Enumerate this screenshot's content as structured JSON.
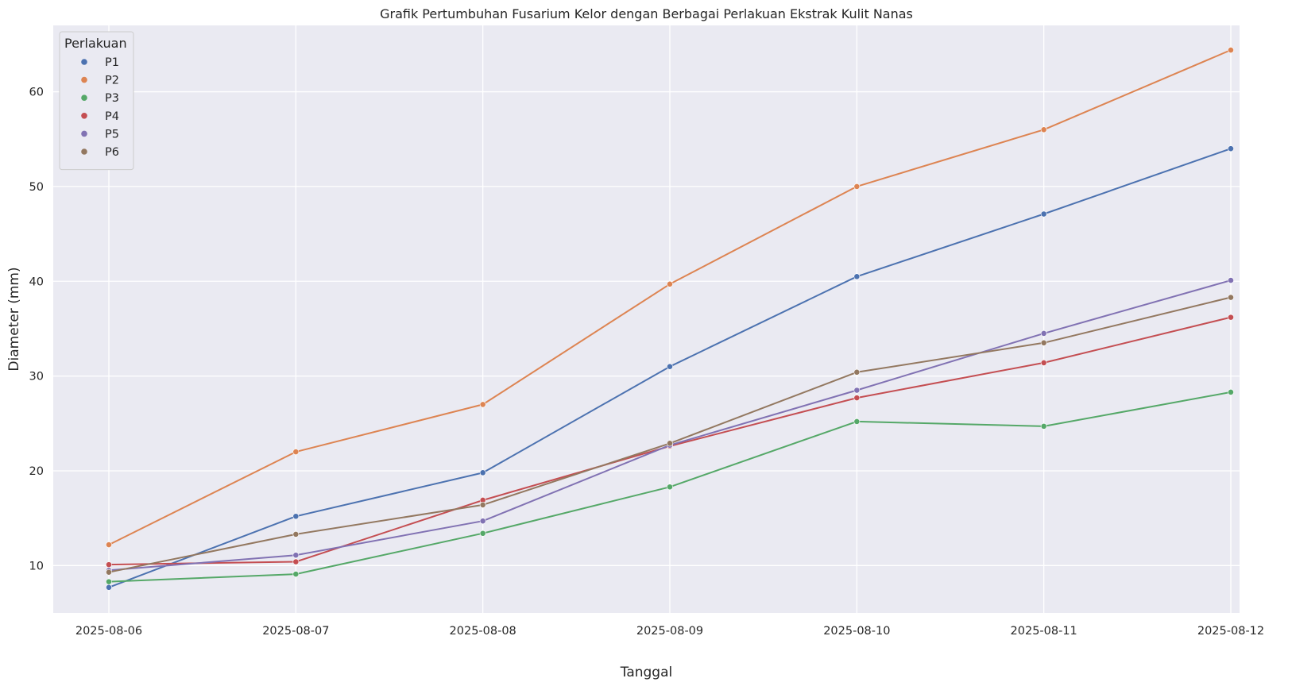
{
  "chart_data": {
    "type": "line",
    "title": "Grafik Pertumbuhan Fusarium Kelor dengan Berbagai Perlakuan Ekstrak Kulit Nanas",
    "xlabel": "Tanggal",
    "ylabel": "Diameter (mm)",
    "x": [
      "2025-08-06",
      "2025-08-07",
      "2025-08-08",
      "2025-08-09",
      "2025-08-10",
      "2025-08-11",
      "2025-08-12"
    ],
    "ylim": [
      5.0,
      67.0
    ],
    "yticks": [
      10,
      20,
      30,
      40,
      50,
      60
    ],
    "grid": true,
    "legend_title": "Perlakuan",
    "legend_position": "top-left",
    "series": [
      {
        "name": "P1",
        "color": "#4c72b0",
        "values": [
          7.7,
          15.2,
          19.8,
          31.0,
          40.5,
          47.1,
          54.0
        ]
      },
      {
        "name": "P2",
        "color": "#dd8452",
        "values": [
          12.2,
          22.0,
          27.0,
          39.7,
          50.0,
          56.0,
          64.4
        ]
      },
      {
        "name": "P3",
        "color": "#55a868",
        "values": [
          8.3,
          9.1,
          13.4,
          18.3,
          25.2,
          24.7,
          28.3
        ]
      },
      {
        "name": "P4",
        "color": "#c44e52",
        "values": [
          10.1,
          10.4,
          16.9,
          22.6,
          27.7,
          31.4,
          36.2
        ]
      },
      {
        "name": "P5",
        "color": "#8172b3",
        "values": [
          9.5,
          11.1,
          14.7,
          22.7,
          28.5,
          34.5,
          40.1
        ]
      },
      {
        "name": "P6",
        "color": "#937860",
        "values": [
          9.3,
          13.3,
          16.4,
          22.9,
          30.4,
          33.5,
          38.3
        ]
      }
    ]
  }
}
